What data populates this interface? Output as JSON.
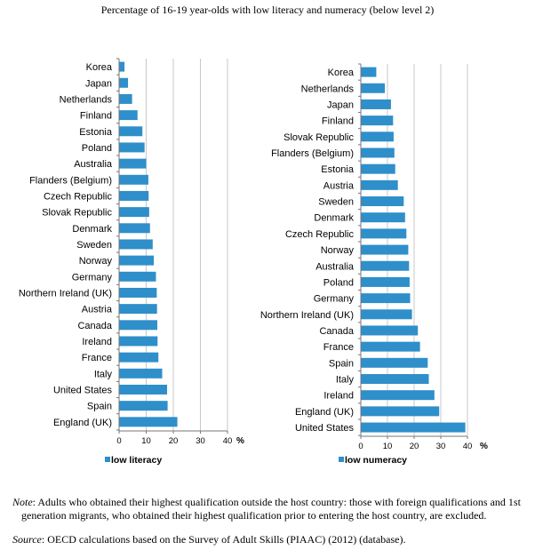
{
  "title": "Percentage of 16-19 year-olds with low literacy and numeracy (below level 2)",
  "colors": {
    "bar": "#2e8fca",
    "grid": "#c8c8c8",
    "axis": "#777777"
  },
  "chart_data": [
    {
      "type": "bar",
      "orientation": "horizontal",
      "series_name": "low literacy",
      "unit": "%",
      "xlim": [
        0,
        40
      ],
      "ticks": [
        0,
        10,
        20,
        30,
        40
      ],
      "grid": true,
      "categories": [
        "Korea",
        "Japan",
        "Netherlands",
        "Finland",
        "Estonia",
        "Poland",
        "Australia",
        "Flanders (Belgium)",
        "Czech Republic",
        "Slovak Republic",
        "Denmark",
        "Sweden",
        "Norway",
        "Germany",
        "Northern Ireland (UK)",
        "Austria",
        "Canada",
        "Ireland",
        "France",
        "Italy",
        "United States",
        "Spain",
        "England (UK)"
      ],
      "values": [
        2,
        3.3,
        4.8,
        6.8,
        8.6,
        9.4,
        10,
        10.8,
        10.9,
        11.1,
        11.4,
        12.4,
        12.8,
        13.6,
        13.9,
        14,
        14.1,
        14.2,
        14.5,
        15.9,
        17.7,
        17.9,
        21.5
      ]
    },
    {
      "type": "bar",
      "orientation": "horizontal",
      "series_name": "low numeracy",
      "unit": "%",
      "xlim": [
        0,
        40
      ],
      "ticks": [
        0,
        10,
        20,
        30,
        40
      ],
      "grid": true,
      "categories": [
        "Korea",
        "Netherlands",
        "Japan",
        "Finland",
        "Slovak Republic",
        "Flanders (Belgium)",
        "Estonia",
        "Austria",
        "Sweden",
        "Denmark",
        "Czech Republic",
        "Norway",
        "Australia",
        "Poland",
        "Germany",
        "Northern Ireland (UK)",
        "Canada",
        "France",
        "Spain",
        "Italy",
        "Ireland",
        "England (UK)",
        "United States"
      ],
      "values": [
        5.8,
        9,
        11.3,
        12.1,
        12.3,
        12.6,
        12.9,
        13.9,
        16.1,
        16.6,
        17.1,
        17.8,
        18.1,
        18.3,
        18.5,
        19.2,
        21.4,
        22.2,
        25.1,
        25.5,
        27.6,
        29.4,
        39.2
      ]
    }
  ],
  "note": {
    "label": "Note",
    "text_line1": ": Adults who obtained their highest qualification outside the host country: those with foreign qualifications and 1st",
    "text_line2": "generation migrants, who obtained their highest qualification prior to entering the host country, are excluded."
  },
  "source": {
    "label": "Source",
    "text": ": OECD calculations based on the Survey of Adult Skills (PIAAC) (2012) (database)."
  }
}
